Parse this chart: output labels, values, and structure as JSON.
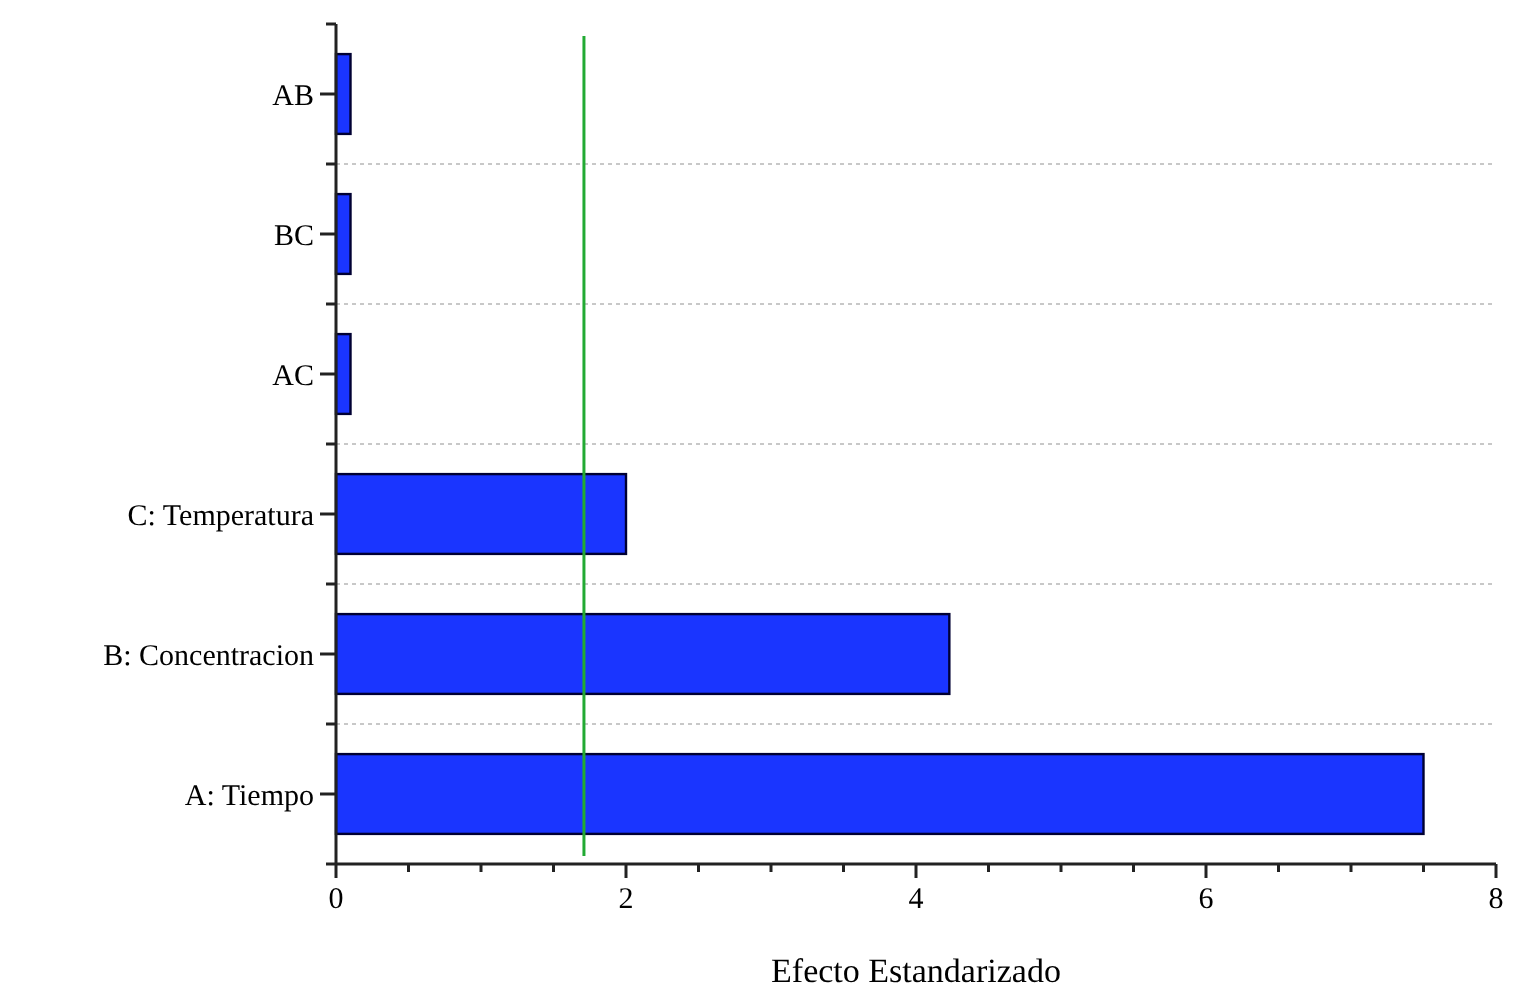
{
  "chart_data": {
    "type": "bar",
    "orientation": "horizontal",
    "xlabel": "Efecto Estandarizado",
    "categories": [
      "AB",
      "BC",
      "AC",
      "C: Temperatura",
      "B: Concentracion",
      "A: Tiempo"
    ],
    "values": [
      0.1,
      0.1,
      0.1,
      2.0,
      4.23,
      7.5
    ],
    "color": "#1a35ff",
    "xlim": [
      0,
      8
    ],
    "xticks": [
      0,
      {
        "value": 0.5,
        "label": null
      },
      {
        "value": 1,
        "label": null
      },
      {
        "value": 1.5,
        "label": null
      },
      2,
      {
        "value": 2.5,
        "label": null
      },
      {
        "value": 3,
        "label": null
      },
      {
        "value": 3.5,
        "label": null
      },
      4,
      {
        "value": 4.5,
        "label": null
      },
      {
        "value": 5,
        "label": null
      },
      {
        "value": 5.5,
        "label": null
      },
      6,
      {
        "value": 6.5,
        "label": null
      },
      {
        "value": 7,
        "label": null
      },
      {
        "value": 7.5,
        "label": null
      },
      8
    ],
    "grid": "y",
    "ref_lines": [
      {
        "axis": "x",
        "value": 1.71,
        "color": "#22aa33"
      }
    ]
  }
}
